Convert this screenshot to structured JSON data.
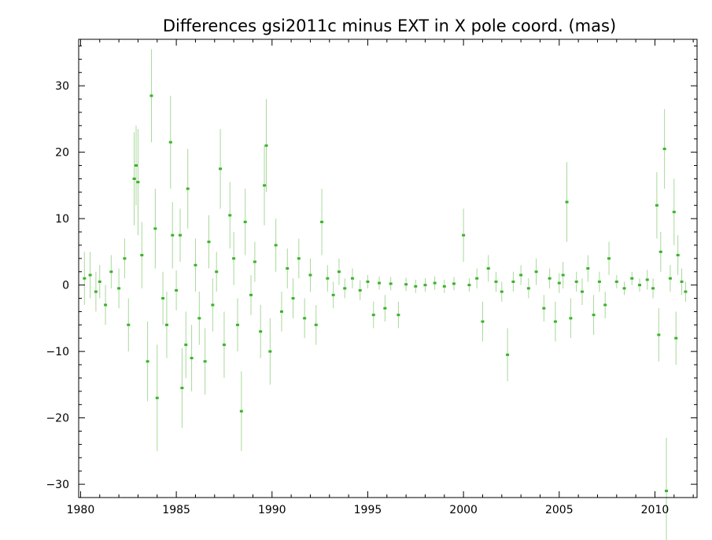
{
  "chart_data": {
    "type": "scatter",
    "title": "Differences gsi2011c minus EXT in X pole coord. (mas)",
    "xlabel": "",
    "ylabel": "",
    "xlim": [
      1979.9,
      2012.2
    ],
    "ylim": [
      -32.0,
      37.0
    ],
    "x_ticks": [
      1980,
      1985,
      1990,
      1995,
      2000,
      2005,
      2010
    ],
    "y_ticks": [
      -30,
      -20,
      -10,
      0,
      10,
      20,
      30
    ],
    "x_tick_labels": [
      "1980",
      "1985",
      "1990",
      "1995",
      "2000",
      "2005",
      "2010"
    ],
    "y_tick_labels": [
      "−30",
      "−20",
      "−10",
      "0",
      "10",
      "20",
      "30"
    ],
    "grid": false,
    "legend": "none",
    "colors": {
      "marker": "#3cb22b",
      "errorbar": "#a8d89a"
    },
    "series": [
      {
        "points": [
          [
            1980.2,
            1.0,
            4.0
          ],
          [
            1980.5,
            1.5,
            3.5
          ],
          [
            1980.8,
            -1.0,
            3.0
          ],
          [
            1981.0,
            0.5,
            2.5
          ],
          [
            1981.3,
            -3.0,
            3.0
          ],
          [
            1981.6,
            2.0,
            2.5
          ],
          [
            1982.0,
            -0.5,
            3.0
          ],
          [
            1982.3,
            4.0,
            3.0
          ],
          [
            1982.5,
            -6.0,
            4.0
          ],
          [
            1982.8,
            16.0,
            7.0
          ],
          [
            1982.9,
            18.0,
            6.0
          ],
          [
            1983.0,
            15.5,
            8.0
          ],
          [
            1983.2,
            4.5,
            5.0
          ],
          [
            1983.5,
            -11.5,
            6.0
          ],
          [
            1983.7,
            28.5,
            7.0
          ],
          [
            1983.9,
            8.5,
            6.0
          ],
          [
            1984.0,
            -17.0,
            8.0
          ],
          [
            1984.3,
            -2.0,
            4.0
          ],
          [
            1984.5,
            -6.0,
            5.0
          ],
          [
            1984.7,
            21.5,
            7.0
          ],
          [
            1984.8,
            7.5,
            5.0
          ],
          [
            1985.0,
            -0.8,
            3.0
          ],
          [
            1985.2,
            7.5,
            4.0
          ],
          [
            1985.3,
            -15.5,
            6.0
          ],
          [
            1985.5,
            -9.0,
            5.0
          ],
          [
            1985.6,
            14.5,
            6.0
          ],
          [
            1985.8,
            -11.0,
            5.0
          ],
          [
            1986.0,
            3.0,
            4.0
          ],
          [
            1986.2,
            -5.0,
            4.0
          ],
          [
            1986.5,
            -11.5,
            5.0
          ],
          [
            1986.7,
            6.5,
            4.0
          ],
          [
            1986.9,
            -3.0,
            4.0
          ],
          [
            1987.1,
            2.0,
            3.0
          ],
          [
            1987.3,
            17.5,
            6.0
          ],
          [
            1987.5,
            -9.0,
            5.0
          ],
          [
            1987.8,
            10.5,
            5.0
          ],
          [
            1988.0,
            4.0,
            4.0
          ],
          [
            1988.2,
            -6.0,
            4.0
          ],
          [
            1988.4,
            -19.0,
            6.0
          ],
          [
            1988.6,
            9.5,
            5.0
          ],
          [
            1988.9,
            -1.5,
            3.0
          ],
          [
            1989.1,
            3.5,
            3.0
          ],
          [
            1989.4,
            -7.0,
            4.0
          ],
          [
            1989.6,
            15.0,
            6.0
          ],
          [
            1989.7,
            21.0,
            7.0
          ],
          [
            1989.9,
            -10.0,
            5.0
          ],
          [
            1990.2,
            6.0,
            4.0
          ],
          [
            1990.5,
            -4.0,
            3.0
          ],
          [
            1990.8,
            2.5,
            3.0
          ],
          [
            1991.1,
            -2.0,
            3.0
          ],
          [
            1991.4,
            4.0,
            3.0
          ],
          [
            1991.7,
            -5.0,
            3.0
          ],
          [
            1992.0,
            1.5,
            2.5
          ],
          [
            1992.3,
            -6.0,
            3.0
          ],
          [
            1992.6,
            9.5,
            5.0
          ],
          [
            1992.9,
            1.0,
            2.0
          ],
          [
            1993.2,
            -1.5,
            2.0
          ],
          [
            1993.5,
            2.0,
            2.0
          ],
          [
            1993.8,
            -0.5,
            1.5
          ],
          [
            1994.2,
            1.0,
            1.5
          ],
          [
            1994.6,
            -0.8,
            1.5
          ],
          [
            1995.0,
            0.5,
            1.0
          ],
          [
            1995.3,
            -4.5,
            2.0
          ],
          [
            1995.6,
            0.3,
            1.0
          ],
          [
            1995.9,
            -3.5,
            2.0
          ],
          [
            1996.2,
            0.2,
            1.0
          ],
          [
            1996.6,
            -4.5,
            2.0
          ],
          [
            1997.0,
            0.1,
            1.0
          ],
          [
            1997.5,
            -0.2,
            1.0
          ],
          [
            1998.0,
            0.0,
            1.0
          ],
          [
            1998.5,
            0.3,
            1.0
          ],
          [
            1999.0,
            -0.2,
            1.0
          ],
          [
            1999.5,
            0.2,
            1.0
          ],
          [
            2000.0,
            7.5,
            4.0
          ],
          [
            2000.3,
            0.0,
            1.0
          ],
          [
            2000.7,
            1.0,
            1.5
          ],
          [
            2001.0,
            -5.5,
            3.0
          ],
          [
            2001.3,
            2.5,
            2.0
          ],
          [
            2001.7,
            0.5,
            1.5
          ],
          [
            2002.0,
            -1.0,
            1.5
          ],
          [
            2002.3,
            -10.5,
            4.0
          ],
          [
            2002.6,
            0.5,
            1.5
          ],
          [
            2003.0,
            1.5,
            1.5
          ],
          [
            2003.4,
            -0.5,
            1.5
          ],
          [
            2003.8,
            2.0,
            2.0
          ],
          [
            2004.2,
            -3.5,
            2.0
          ],
          [
            2004.5,
            1.0,
            1.5
          ],
          [
            2004.8,
            -5.5,
            3.0
          ],
          [
            2005.0,
            0.3,
            1.5
          ],
          [
            2005.2,
            1.5,
            2.0
          ],
          [
            2005.4,
            12.5,
            6.0
          ],
          [
            2005.6,
            -5.0,
            3.0
          ],
          [
            2005.9,
            0.5,
            1.5
          ],
          [
            2006.2,
            -1.0,
            2.0
          ],
          [
            2006.5,
            2.5,
            2.0
          ],
          [
            2006.8,
            -4.5,
            3.0
          ],
          [
            2007.1,
            0.5,
            1.5
          ],
          [
            2007.4,
            -3.0,
            2.0
          ],
          [
            2007.6,
            4.0,
            2.5
          ],
          [
            2008.0,
            0.5,
            1.0
          ],
          [
            2008.4,
            -0.5,
            1.0
          ],
          [
            2008.8,
            1.0,
            1.0
          ],
          [
            2009.2,
            0.0,
            1.0
          ],
          [
            2009.6,
            0.8,
            1.5
          ],
          [
            2009.9,
            -0.5,
            1.5
          ],
          [
            2010.1,
            12.0,
            5.0
          ],
          [
            2010.2,
            -7.5,
            4.0
          ],
          [
            2010.3,
            5.0,
            3.0
          ],
          [
            2010.5,
            20.5,
            6.0
          ],
          [
            2010.6,
            -31.0,
            8.0
          ],
          [
            2010.8,
            1.0,
            2.0
          ],
          [
            2011.0,
            11.0,
            5.0
          ],
          [
            2011.1,
            -8.0,
            4.0
          ],
          [
            2011.2,
            4.5,
            3.0
          ],
          [
            2011.4,
            0.5,
            2.0
          ],
          [
            2011.6,
            -1.0,
            1.5
          ]
        ],
        "columns": [
          "year",
          "diff_mas",
          "sigma_mas"
        ]
      }
    ]
  }
}
